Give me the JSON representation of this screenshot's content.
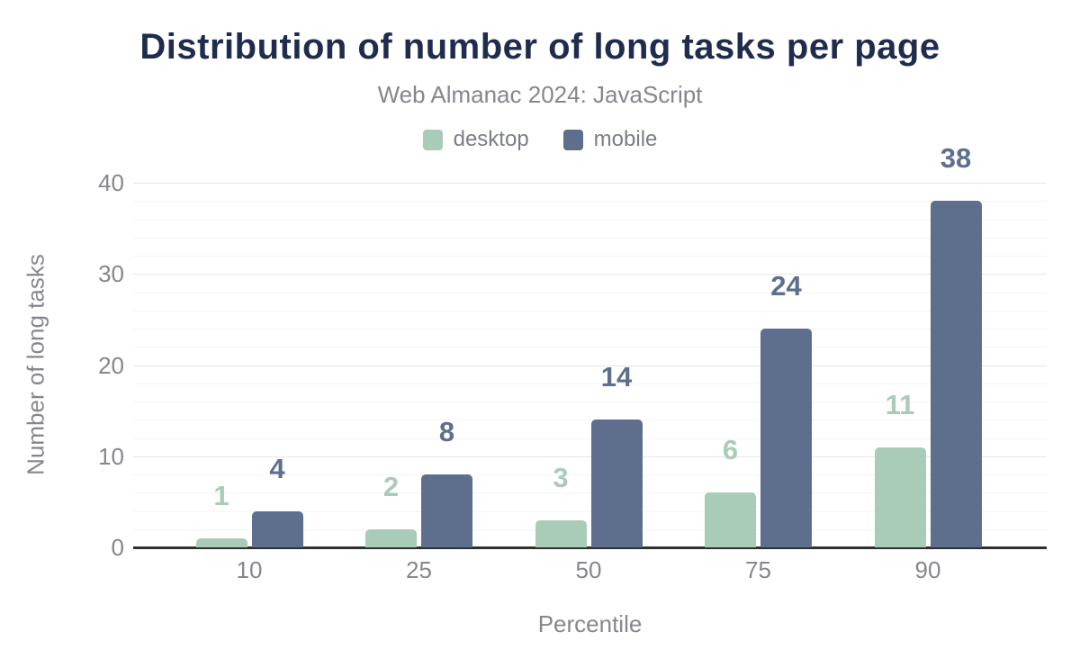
{
  "chart_data": {
    "type": "bar",
    "title": "Distribution of number of long tasks per page",
    "subtitle": "Web Almanac 2024: JavaScript",
    "xlabel": "Percentile",
    "ylabel": "Number of long tasks",
    "categories": [
      "10",
      "25",
      "50",
      "75",
      "90"
    ],
    "series": [
      {
        "name": "desktop",
        "color": "#a9ccb9",
        "values": [
          1,
          2,
          3,
          6,
          11
        ]
      },
      {
        "name": "mobile",
        "color": "#5d6f8c",
        "values": [
          4,
          8,
          14,
          24,
          38
        ]
      }
    ],
    "ylim": [
      0,
      40
    ],
    "yticks": [
      0,
      10,
      20,
      30,
      40
    ],
    "minor_grid_step": 2,
    "grid": true,
    "legend_position": "top",
    "value_labels_shown": true
  },
  "colors": {
    "title": "#1f2c4d",
    "subtitle": "#85878d",
    "tick_text": "#85878d",
    "legend_text": "#7b7e86",
    "axis_line": "#2f2f2f",
    "grid_major": "#e7e7e7",
    "grid_minor": "#f5f5f5",
    "background": "#ffffff"
  }
}
